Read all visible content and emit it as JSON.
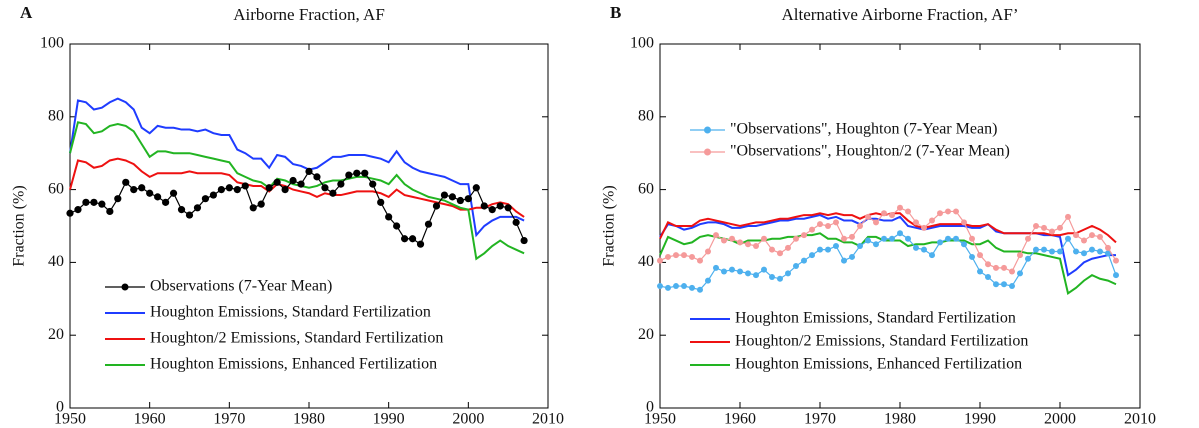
{
  "chart_data": [
    {
      "type": "line",
      "label": "A",
      "title": "Airborne Fraction, AF",
      "ylabel": "Fraction (%)",
      "xlim": [
        1950,
        2010
      ],
      "xticks": [
        1950,
        1960,
        1970,
        1980,
        1990,
        2000,
        2010
      ],
      "ylim": [
        0,
        100
      ],
      "yticks": [
        0,
        20,
        40,
        60,
        80,
        100
      ],
      "legend": "lower left",
      "x": [
        1950,
        1951,
        1952,
        1953,
        1954,
        1955,
        1956,
        1957,
        1958,
        1959,
        1960,
        1961,
        1962,
        1963,
        1964,
        1965,
        1966,
        1967,
        1968,
        1969,
        1970,
        1971,
        1972,
        1973,
        1974,
        1975,
        1976,
        1977,
        1978,
        1979,
        1980,
        1981,
        1982,
        1983,
        1984,
        1985,
        1986,
        1987,
        1988,
        1989,
        1990,
        1991,
        1992,
        1993,
        1994,
        1995,
        1996,
        1997,
        1998,
        1999,
        2000,
        2001,
        2002,
        2003,
        2004,
        2005,
        2006,
        2007
      ],
      "series": [
        {
          "name": "Observations (7-Year Mean)",
          "color": "#000000",
          "marker": true,
          "values": [
            53.5,
            54.5,
            56.5,
            56.5,
            56,
            54,
            57.5,
            62,
            60,
            60.5,
            59,
            58,
            56.5,
            59,
            54.5,
            53,
            55,
            57.5,
            58.5,
            60,
            60.5,
            60,
            61,
            55,
            56,
            60.5,
            62,
            60,
            62.5,
            61.5,
            65,
            63.5,
            60.5,
            59,
            61.5,
            64,
            64.5,
            64.5,
            61.5,
            56.5,
            52.5,
            50,
            46.5,
            46.5,
            45,
            50.5,
            55.5,
            58.5,
            58,
            57,
            57.5,
            60.5,
            55.5,
            54.5,
            55.5,
            55,
            51,
            46
          ]
        },
        {
          "name": "Houghton Emissions, Standard Fertilization",
          "color": "#1f3cff",
          "marker": false,
          "values": [
            70,
            84.5,
            84,
            82,
            82.5,
            84,
            85,
            84,
            82,
            77,
            75.5,
            77.5,
            77,
            77,
            76.5,
            76.5,
            76,
            76.5,
            75.5,
            75,
            75,
            71,
            70,
            68.5,
            68.5,
            66,
            69.5,
            69,
            67,
            66.5,
            65.5,
            66,
            67.5,
            69,
            69,
            69.5,
            69.5,
            69.5,
            69,
            68.5,
            67.5,
            70.5,
            67.5,
            66,
            65,
            64.5,
            64,
            63.5,
            62.5,
            61.5,
            61.5,
            47.5,
            50,
            51.5,
            52.5,
            52.5,
            52.5,
            51.5
          ]
        },
        {
          "name": "Houghton/2 Emissions, Standard Fertilization",
          "color": "#ee1111",
          "marker": false,
          "values": [
            60,
            68,
            67.5,
            66,
            66.5,
            68,
            68.5,
            68,
            67,
            65,
            63.5,
            64.5,
            64.5,
            64.5,
            64.5,
            65,
            64.5,
            64.5,
            64.5,
            64.5,
            64,
            62,
            61.5,
            61,
            61,
            59.5,
            61.5,
            61,
            60,
            59.5,
            59,
            58,
            59,
            58.5,
            58.5,
            59,
            59.5,
            59.5,
            59.5,
            59,
            58,
            60,
            58.5,
            58,
            57.5,
            57,
            56.5,
            56,
            55.5,
            54.5,
            54.5,
            55,
            55,
            56,
            56.5,
            56,
            54,
            52.5
          ]
        },
        {
          "name": "Houghton Emissions, Enhanced Fertilization",
          "color": "#22b422",
          "marker": false,
          "values": [
            70,
            78.5,
            78,
            75.5,
            76,
            77.5,
            78,
            77.5,
            76,
            72.5,
            69,
            70.5,
            70.5,
            70,
            70,
            70,
            69.5,
            69,
            68.5,
            68,
            67.5,
            64.5,
            63.5,
            62.5,
            62,
            60.5,
            63,
            62.5,
            61.5,
            61,
            60.5,
            61,
            62,
            62.5,
            62.5,
            63,
            63.5,
            63.5,
            63,
            62.5,
            61.5,
            64,
            61.5,
            60,
            59,
            58,
            57.5,
            57,
            56,
            55,
            54.5,
            41,
            42.5,
            44.5,
            46,
            44.5,
            43.5,
            42.5
          ]
        }
      ]
    },
    {
      "type": "line",
      "label": "B",
      "title": "Alternative Airborne Fraction, AF’",
      "ylabel": "Fraction (%)",
      "xlim": [
        1950,
        2010
      ],
      "xticks": [
        1950,
        1960,
        1970,
        1980,
        1990,
        2000,
        2010
      ],
      "ylim": [
        0,
        100
      ],
      "yticks": [
        0,
        20,
        40,
        60,
        80,
        100
      ],
      "legend": "lower left",
      "x": [
        1950,
        1951,
        1952,
        1953,
        1954,
        1955,
        1956,
        1957,
        1958,
        1959,
        1960,
        1961,
        1962,
        1963,
        1964,
        1965,
        1966,
        1967,
        1968,
        1969,
        1970,
        1971,
        1972,
        1973,
        1974,
        1975,
        1976,
        1977,
        1978,
        1979,
        1980,
        1981,
        1982,
        1983,
        1984,
        1985,
        1986,
        1987,
        1988,
        1989,
        1990,
        1991,
        1992,
        1993,
        1994,
        1995,
        1996,
        1997,
        1998,
        1999,
        2000,
        2001,
        2002,
        2003,
        2004,
        2005,
        2006,
        2007
      ],
      "series": [
        {
          "name": "Houghton Emissions, Standard Fertilization",
          "color": "#1f3cff",
          "marker": false,
          "values": [
            47,
            50.5,
            50,
            49,
            49.5,
            50.5,
            51,
            51,
            50.5,
            49.5,
            49.5,
            50,
            50,
            50.5,
            51,
            51.5,
            51.5,
            52,
            52,
            52.5,
            53,
            52,
            52.5,
            51.5,
            51.5,
            50.5,
            52,
            52,
            51.5,
            51.5,
            52.5,
            50,
            49.5,
            49,
            49.5,
            50,
            50,
            50,
            50,
            49.5,
            49.5,
            50.5,
            48.5,
            48,
            48,
            48,
            48,
            48,
            47.5,
            47.5,
            47,
            36.5,
            38,
            40,
            41,
            41.5,
            42,
            42
          ]
        },
        {
          "name": "Houghton/2 Emissions, Standard Fertilization",
          "color": "#ee1111",
          "marker": false,
          "values": [
            46.5,
            51,
            50,
            50,
            50,
            51.5,
            52,
            51.5,
            51,
            50.5,
            50,
            50.5,
            51,
            51,
            51.5,
            52,
            52,
            52.5,
            53,
            53,
            53.5,
            53,
            53.5,
            53,
            53,
            52,
            53,
            53.5,
            53,
            53.5,
            53.5,
            51.5,
            50,
            49.5,
            50,
            50.5,
            50.5,
            50.5,
            50.5,
            50,
            50,
            50.5,
            49,
            48,
            48,
            48,
            48,
            48,
            48,
            47.5,
            47.5,
            48,
            48,
            49,
            50,
            49,
            47.5,
            45.5
          ]
        },
        {
          "name": "Houghton Emissions, Enhanced Fertilization",
          "color": "#22b422",
          "marker": false,
          "values": [
            42,
            47,
            46,
            45,
            45.5,
            47,
            47.5,
            47,
            46.5,
            46,
            45,
            46,
            46,
            46,
            46.5,
            46.5,
            47,
            47,
            47.5,
            47.5,
            48,
            46.5,
            46.5,
            45.5,
            45.5,
            44.5,
            47,
            47,
            46,
            46,
            46,
            44.5,
            45,
            45,
            45.5,
            45.5,
            46,
            46,
            46,
            45,
            45,
            46,
            44,
            43,
            43,
            43,
            42.5,
            42.5,
            42,
            41.5,
            41,
            31.5,
            33,
            35,
            36.5,
            35.5,
            35,
            34
          ]
        },
        {
          "name": "\"Observations\", Houghton (7-Year Mean)",
          "color": "#4db0ee",
          "marker": true,
          "legend": "upper left",
          "values": [
            33.5,
            33,
            33.5,
            33.5,
            33,
            32.5,
            35,
            38.5,
            37.5,
            38,
            37.5,
            37,
            36.5,
            38,
            36,
            35.5,
            37,
            39,
            40.5,
            42,
            43.5,
            43.5,
            44.5,
            40.5,
            41.5,
            44.5,
            46,
            45,
            46.5,
            46.5,
            48,
            46.5,
            44,
            43.5,
            42,
            45.5,
            46.5,
            46.5,
            45,
            41.5,
            37.5,
            36,
            34,
            34,
            33.5,
            37,
            41,
            43.5,
            43.5,
            43,
            43,
            46.5,
            43,
            42.5,
            43.5,
            43,
            42.5,
            36.5
          ]
        },
        {
          "name": "\"Observations\", Houghton/2 (7-Year Mean)",
          "color": "#f59a9a",
          "marker": true,
          "legend": "upper left",
          "values": [
            40.5,
            41.5,
            42,
            42,
            41.5,
            40.5,
            43,
            47.5,
            46,
            46.5,
            45.5,
            45,
            44.5,
            46.5,
            43.5,
            42.5,
            44,
            46.5,
            47.5,
            49,
            50.5,
            50,
            51,
            46.5,
            47,
            50,
            52.5,
            51,
            53.5,
            53,
            55,
            54,
            51,
            49.5,
            51.5,
            53.5,
            54,
            54,
            51,
            46.5,
            42,
            39.5,
            38.5,
            38.5,
            37.5,
            42,
            46.5,
            50,
            49.5,
            48.5,
            49.5,
            52.5,
            47.5,
            46,
            47.5,
            47,
            44,
            40.5
          ]
        }
      ]
    }
  ]
}
